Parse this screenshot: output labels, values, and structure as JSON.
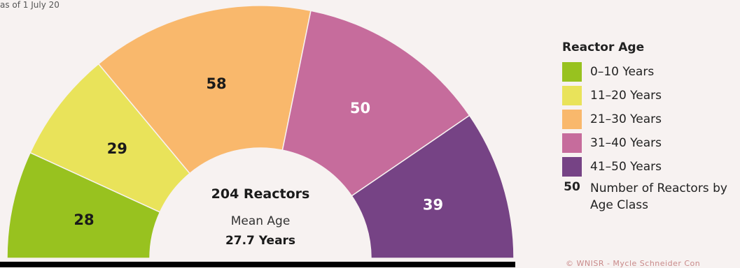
{
  "chart_data": {
    "type": "pie",
    "variant": "half-donut",
    "categories": [
      "0–10 Years",
      "11–20 Years",
      "21–30 Years",
      "31–40 Years",
      "41–50 Years"
    ],
    "values": [
      28,
      29,
      58,
      50,
      39
    ],
    "colors": [
      "#98c21f",
      "#e9e35a",
      "#f9b86c",
      "#c66c9c",
      "#764385"
    ],
    "label_colors": [
      "#1a1a1a",
      "#1a1a1a",
      "#1a1a1a",
      "#ffffff",
      "#ffffff"
    ],
    "center": {
      "total_label": "204 Reactors",
      "subtitle": "Mean Age",
      "mean_age_label": "27.7 Years"
    },
    "legend": {
      "title": "Reactor Age",
      "placement": "right",
      "key_number": "50",
      "key_text": "Number of Reactors by Age Class"
    }
  },
  "credit": "© WNISR - Mycle Schneider Con",
  "top_text": "as of 1 July 20"
}
